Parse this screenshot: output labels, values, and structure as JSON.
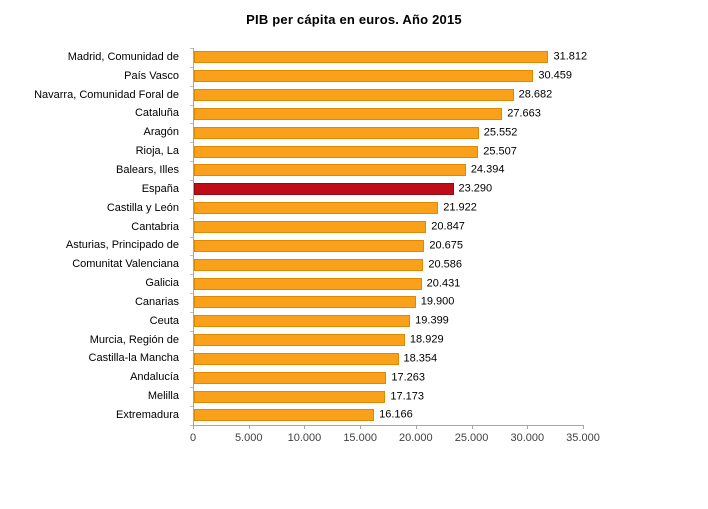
{
  "title": "PIB per cápita en euros. Año 2015",
  "colors": {
    "bar_fill": "#F9A11B",
    "bar_border": "#DE8A00",
    "highlight_fill": "#C00B19",
    "highlight_border": "#8E0C14",
    "axis": "#A6A6A6",
    "tick": "#BFBFBF",
    "text": "#000000"
  },
  "chart_data": {
    "type": "bar",
    "orientation": "horizontal",
    "title": "PIB per cápita en euros. Año 2015",
    "categories": [
      "Madrid, Comunidad de",
      "País Vasco",
      "Navarra, Comunidad Foral de",
      "Cataluña",
      "Aragón",
      "Rioja, La",
      "Balears, Illes",
      "España",
      "Castilla y León",
      "Cantabria",
      "Asturias, Principado de",
      "Comunitat Valenciana",
      "Galicia",
      "Canarias",
      "Ceuta",
      "Murcia, Región de",
      "Castilla-la Mancha",
      "Andalucía",
      "Melilla",
      "Extremadura"
    ],
    "values": [
      31812,
      30459,
      28682,
      27663,
      25552,
      25507,
      24394,
      23290,
      21922,
      20847,
      20675,
      20586,
      20431,
      19900,
      19399,
      18929,
      18354,
      17263,
      17173,
      16166
    ],
    "value_labels": [
      "31.812",
      "30.459",
      "28.682",
      "27.663",
      "25.552",
      "25.507",
      "24.394",
      "23.290",
      "21.922",
      "20.847",
      "20.675",
      "20.586",
      "20.431",
      "19.900",
      "19.399",
      "18.929",
      "18.354",
      "17.263",
      "17.173",
      "16.166"
    ],
    "highlight_category": "España",
    "xlim": [
      0,
      35000
    ],
    "x_ticks": [
      "0",
      "5.000",
      "10.000",
      "15.000",
      "20.000",
      "25.000",
      "30.000",
      "35.000"
    ],
    "grid": false,
    "legend": false
  }
}
